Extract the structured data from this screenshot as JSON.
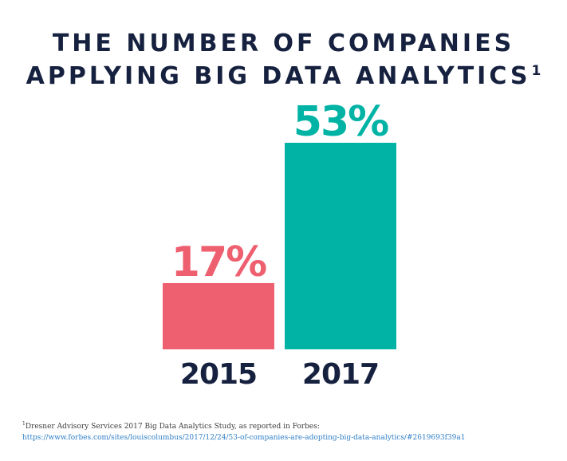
{
  "title": {
    "line1": "THE NUMBER OF COMPANIES",
    "line2": "APPLYING BIG DATA ANALYTICS",
    "footnote_marker": "1"
  },
  "colors": {
    "title": "#16213f",
    "bar_2015": "#ee5f70",
    "bar_2017": "#00b3a4",
    "axis_text": "#16213f",
    "footnote_link": "#2f7fc7"
  },
  "chart_data": {
    "type": "bar",
    "title": "THE NUMBER OF COMPANIES APPLYING BIG DATA ANALYTICS",
    "categories": [
      "2015",
      "2017"
    ],
    "values": [
      17,
      53
    ],
    "value_labels": [
      "17%",
      "53%"
    ],
    "colors": [
      "#ee5f70",
      "#00b3a4"
    ],
    "xlabel": "",
    "ylabel": "",
    "ylim": [
      0,
      53
    ],
    "grid": false,
    "legend": "none"
  },
  "footnote": {
    "marker": "1",
    "text": "Dresner Advisory Services 2017 Big Data Analytics Study, as reported in Forbes:",
    "url": "https://www.forbes.com/sites/louiscolumbus/2017/12/24/53-of-companies-are-adopting-big-data-analytics/#2619693f39a1"
  }
}
